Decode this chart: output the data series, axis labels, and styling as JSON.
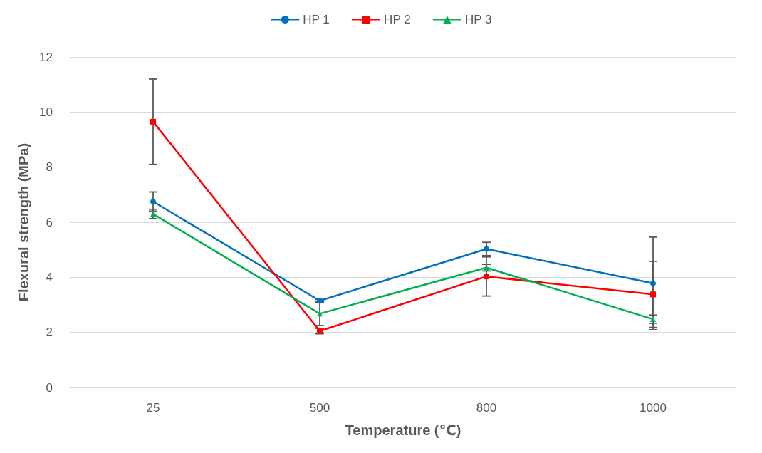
{
  "chart_data": {
    "type": "line",
    "xlabel": "Temperature (℃)",
    "ylabel": "Flexural strength (MPa)",
    "categories": [
      "25",
      "500",
      "800",
      "1000"
    ],
    "series": [
      {
        "name": "HP 1",
        "color": "#0070c0",
        "marker": "circle",
        "values": [
          6.75,
          3.15,
          5.03,
          3.78
        ],
        "errors": [
          0.35,
          0.05,
          0.24,
          1.68
        ]
      },
      {
        "name": "HP 2",
        "color": "#ff0000",
        "marker": "square",
        "values": [
          9.65,
          2.05,
          4.03,
          3.38
        ],
        "errors": [
          1.55,
          0.1,
          0.71,
          1.2
        ]
      },
      {
        "name": "HP 3",
        "color": "#00b050",
        "marker": "triangle",
        "values": [
          6.3,
          2.68,
          4.35,
          2.48
        ],
        "errors": [
          0.17,
          0.43,
          0.12,
          0.15
        ]
      }
    ],
    "ylim": [
      0,
      12
    ],
    "yticks": [
      0,
      2,
      4,
      6,
      8,
      10,
      12
    ],
    "grid": "y",
    "legend": "top",
    "line_style": "solid"
  }
}
